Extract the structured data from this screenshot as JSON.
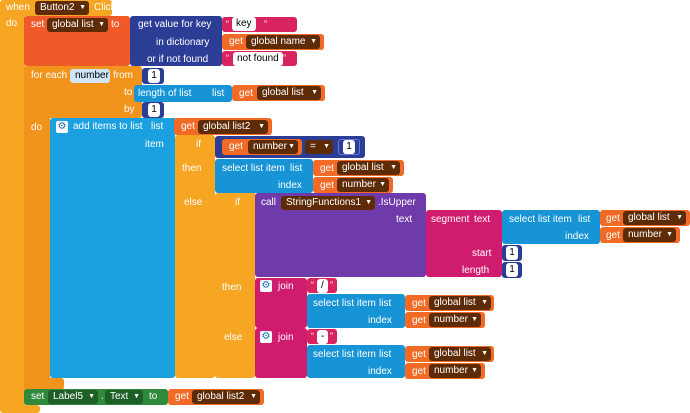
{
  "event": {
    "when": "when",
    "component": "Button2",
    "event": "Click",
    "do": "do"
  },
  "set1": {
    "set": "set",
    "var": "global list",
    "to": "to"
  },
  "dict": {
    "label": "get value for key",
    "in_dict": "in dictionary",
    "not_found": "or if not found",
    "key": "key",
    "get": "get",
    "var": "global name",
    "not_found_val": "not found"
  },
  "foreach": {
    "label": "for each",
    "var": "number",
    "from": "from",
    "from_val": "1",
    "to": "to",
    "length": "length of list",
    "list": "list",
    "get": "get",
    "list_var": "global list",
    "by": "by",
    "by_val": "1",
    "do": "do"
  },
  "additems": {
    "label": "add items to list",
    "list": "list",
    "get": "get",
    "list_var": "global list2",
    "item": "item"
  },
  "if1": {
    "if": "if",
    "then": "then",
    "else": "else",
    "get": "get",
    "var": "number",
    "op": "=",
    "val": "1"
  },
  "select1": {
    "label": "select list item",
    "list": "list",
    "get": "get",
    "list_var": "global list",
    "index": "index",
    "idx_var": "number"
  },
  "if2": {
    "if": "if",
    "then": "then",
    "else": "else"
  },
  "call": {
    "call": "call",
    "component": "StringFunctions1",
    "method": ".IsUpper",
    "text": "text"
  },
  "segment": {
    "label": "segment",
    "text": "text",
    "start": "start",
    "start_val": "1",
    "length": "length",
    "length_val": "1"
  },
  "select2": {
    "label": "select list item",
    "list": "list",
    "get": "get",
    "list_var": "global list",
    "index": "index",
    "idx_var": "number"
  },
  "join1": {
    "label": "join",
    "str": "/"
  },
  "select3": {
    "label": "select list item",
    "list": "list",
    "get": "get",
    "list_var": "global list",
    "index": "index",
    "idx_var": "number"
  },
  "join2": {
    "label": "join",
    "str": "-"
  },
  "select4": {
    "label": "select list item",
    "list": "list",
    "get": "get",
    "list_var": "global list",
    "index": "index",
    "idx_var": "number"
  },
  "set2": {
    "set": "set",
    "component": "Label5",
    "prop": "Text",
    "to": "to",
    "get": "get",
    "var": "global list2"
  }
}
